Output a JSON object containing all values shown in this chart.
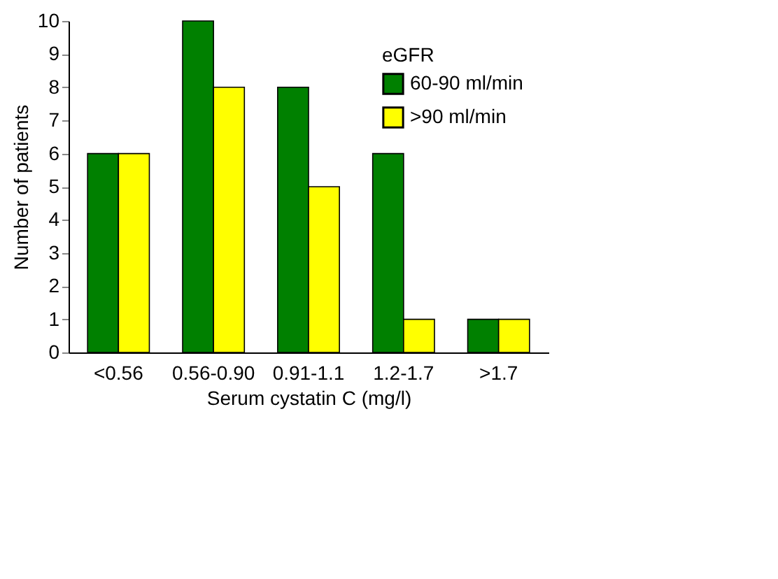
{
  "chart_data": {
    "type": "bar",
    "xlabel": "Serum cystatin C (mg/l)",
    "ylabel": "Number of patients",
    "legend_title": "eGFR",
    "categories": [
      "<0.56",
      "0.56-0.90",
      "0.91-1.1",
      "1.2-1.7",
      ">1.7"
    ],
    "series": [
      {
        "name": "60-90 ml/min",
        "color": "#008000",
        "values": [
          6,
          10,
          8,
          6,
          1
        ]
      },
      {
        "name": ">90 ml/min",
        "color": "#ffff00",
        "values": [
          6,
          8,
          5,
          1,
          1
        ]
      }
    ],
    "ylim": [
      0,
      10
    ],
    "yticks": [
      0,
      1,
      2,
      3,
      4,
      5,
      6,
      7,
      8,
      9,
      10
    ],
    "grid": false,
    "legend": "top right"
  }
}
